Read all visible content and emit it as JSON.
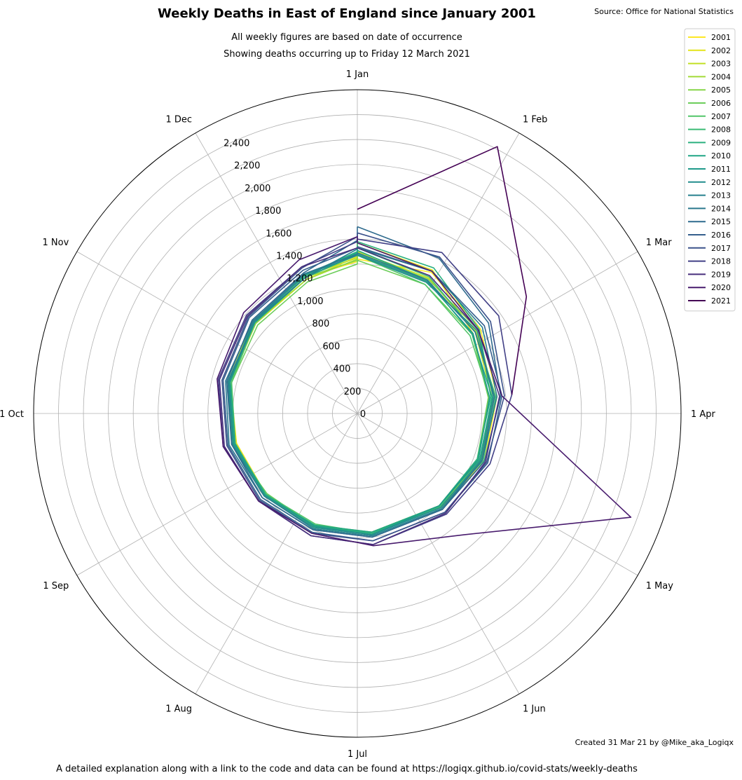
{
  "chart_data": {
    "type": "line",
    "polar": true,
    "title": "Weekly Deaths in East of England since January 2001",
    "subtitle_1": "All weekly figures are based on date of occurrence",
    "subtitle_2": "Showing deaths occurring up to Friday 12 March 2021",
    "source": "Source: Office for National Statistics",
    "credit": "Created 31 Mar 21 by @Mike_aka_Logiqx",
    "footer": "A detailed explanation along with a link to the code and data can be found at https://logiqx.github.io/covid-stats/weekly-deaths",
    "angular_axis": {
      "direction": "clockwise",
      "zero_at": "top",
      "month_labels": [
        "1 Jan",
        "1 Feb",
        "1 Mar",
        "1 Apr",
        "1 May",
        "1 Jun",
        "1 Jul",
        "1 Aug",
        "1 Sep",
        "1 Oct",
        "1 Nov",
        "1 Dec"
      ]
    },
    "radial_axis": {
      "rlim": [
        0,
        2600
      ],
      "ticks": [
        0,
        200,
        400,
        600,
        800,
        1000,
        1200,
        1400,
        1600,
        1800,
        2000,
        2200,
        2400
      ],
      "tick_labels": [
        "0",
        "200",
        "400",
        "600",
        "800",
        "1,000",
        "1,200",
        "1,400",
        "1,600",
        "1,800",
        "2,000",
        "2,200",
        "2,400"
      ]
    },
    "grid": true,
    "legend_position": "top-right",
    "colormap": "viridis",
    "weeks": [
      1,
      5,
      9,
      13,
      17,
      21,
      26,
      30,
      34,
      38,
      42,
      46,
      50,
      53
    ],
    "series": [
      {
        "name": "2001",
        "color": "#fde725",
        "values": [
          1240,
          1280,
          1200,
          1130,
          1090,
          1010,
          970,
          970,
          980,
          1000,
          1060,
          1100,
          1170,
          1220
        ]
      },
      {
        "name": "2002",
        "color": "#e4e419",
        "values": [
          1370,
          1300,
          1130,
          1060,
          1040,
          990,
          960,
          970,
          990,
          1000,
          1050,
          1090,
          1150,
          1260
        ]
      },
      {
        "name": "2003",
        "color": "#c2df23",
        "values": [
          1300,
          1230,
          1150,
          1090,
          1070,
          990,
          980,
          970,
          990,
          1030,
          1070,
          1120,
          1180,
          1250
        ]
      },
      {
        "name": "2004",
        "color": "#a2da37",
        "values": [
          1280,
          1200,
          1160,
          1110,
          1060,
          1000,
          980,
          980,
          1000,
          1020,
          1050,
          1100,
          1150,
          1240
        ]
      },
      {
        "name": "2005",
        "color": "#86d549",
        "values": [
          1290,
          1220,
          1180,
          1100,
          1050,
          1010,
          960,
          960,
          990,
          1010,
          1060,
          1090,
          1170,
          1230
        ]
      },
      {
        "name": "2006",
        "color": "#6ccd5a",
        "values": [
          1230,
          1170,
          1120,
          1060,
          1030,
          990,
          960,
          970,
          970,
          1040,
          1040,
          1070,
          1130,
          1200
        ]
      },
      {
        "name": "2007",
        "color": "#52c569",
        "values": [
          1270,
          1170,
          1100,
          1070,
          1040,
          1000,
          970,
          950,
          980,
          1010,
          1040,
          1100,
          1170,
          1270
        ]
      },
      {
        "name": "2008",
        "color": "#3bbb75",
        "values": [
          1330,
          1240,
          1150,
          1120,
          1080,
          1000,
          980,
          960,
          990,
          1020,
          1060,
          1120,
          1180,
          1300
        ]
      },
      {
        "name": "2009",
        "color": "#2ab07f",
        "values": [
          1380,
          1320,
          1190,
          1080,
          1030,
          990,
          970,
          970,
          980,
          1020,
          1070,
          1110,
          1190,
          1300
        ]
      },
      {
        "name": "2010",
        "color": "#21a685",
        "values": [
          1310,
          1210,
          1120,
          1090,
          1050,
          990,
          960,
          960,
          990,
          1010,
          1050,
          1110,
          1190,
          1290
        ]
      },
      {
        "name": "2011",
        "color": "#1f9a8a",
        "values": [
          1280,
          1200,
          1130,
          1070,
          1040,
          990,
          980,
          970,
          990,
          1020,
          1060,
          1100,
          1170,
          1280
        ]
      },
      {
        "name": "2012",
        "color": "#228d8d",
        "values": [
          1270,
          1190,
          1170,
          1100,
          1060,
          1010,
          980,
          980,
          1000,
          1030,
          1060,
          1110,
          1190,
          1270
        ]
      },
      {
        "name": "2013",
        "color": "#26818e",
        "values": [
          1330,
          1290,
          1220,
          1130,
          1070,
          1020,
          990,
          990,
          1000,
          1040,
          1070,
          1110,
          1170,
          1320
        ]
      },
      {
        "name": "2014",
        "color": "#2a788e",
        "values": [
          1290,
          1210,
          1150,
          1110,
          1070,
          1030,
          1000,
          1000,
          1020,
          1060,
          1090,
          1120,
          1200,
          1280
        ]
      },
      {
        "name": "2015",
        "color": "#2f6b8e",
        "values": [
          1500,
          1410,
          1280,
          1160,
          1090,
          1030,
          1000,
          1000,
          1020,
          1040,
          1080,
          1130,
          1210,
          1390
        ]
      },
      {
        "name": "2016",
        "color": "#355f8d",
        "values": [
          1340,
          1290,
          1240,
          1170,
          1120,
          1060,
          1030,
          1020,
          1040,
          1070,
          1110,
          1160,
          1230,
          1330
        ]
      },
      {
        "name": "2017",
        "color": "#3b528b",
        "values": [
          1450,
          1420,
          1300,
          1190,
          1110,
          1060,
          1030,
          1030,
          1050,
          1080,
          1120,
          1170,
          1250,
          1420
        ]
      },
      {
        "name": "2018",
        "color": "#424086",
        "values": [
          1400,
          1460,
          1380,
          1250,
          1140,
          1080,
          1060,
          1050,
          1060,
          1110,
          1150,
          1190,
          1260,
          1380
        ]
      },
      {
        "name": "2019",
        "color": "#472e7c",
        "values": [
          1330,
          1250,
          1180,
          1150,
          1100,
          1070,
          1060,
          1050,
          1060,
          1100,
          1140,
          1180,
          1260,
          1330
        ]
      },
      {
        "name": "2020",
        "color": "#481b6d",
        "values": [
          1370,
          1290,
          1180,
          1170,
          2350,
          1300,
          1070,
          1030,
          1060,
          1110,
          1160,
          1220,
          1320,
          1420
        ]
      },
      {
        "name": "2021",
        "color": "#440154",
        "values": [
          1640,
          2420,
          1650,
          1250
        ]
      }
    ]
  }
}
